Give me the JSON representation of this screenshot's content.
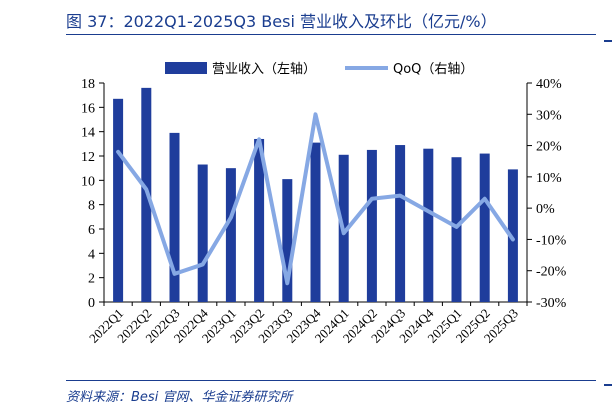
{
  "figure": {
    "title": "图 37：2022Q1-2025Q3 Besi 营业收入及环比（亿元/%）",
    "source": "资料来源：Besi 官网、华金证券研究所"
  },
  "colors": {
    "bar": "#1f3d9c",
    "line": "#86a8e4",
    "text": "#1a3d8f"
  },
  "chart_data": {
    "type": "bar",
    "categories": [
      "2022Q1",
      "2022Q2",
      "2022Q3",
      "2022Q4",
      "2023Q1",
      "2023Q2",
      "2023Q3",
      "2023Q4",
      "2024Q1",
      "2024Q2",
      "2024Q3",
      "2024Q4",
      "2025Q1",
      "2025Q2",
      "2025Q3"
    ],
    "series": [
      {
        "name": "营业收入（左轴）",
        "axis": "left",
        "type": "bar",
        "values": [
          16.7,
          17.6,
          13.9,
          11.3,
          11.0,
          13.4,
          10.1,
          13.1,
          12.1,
          12.5,
          12.9,
          12.6,
          11.9,
          12.2,
          10.9
        ]
      },
      {
        "name": "QoQ（右轴）",
        "axis": "right",
        "type": "line",
        "values": [
          18,
          6,
          -21,
          -18,
          -3,
          22,
          -24,
          30,
          -8,
          3,
          4,
          -1,
          -6,
          3,
          -10
        ]
      }
    ],
    "y_left": {
      "min": 0,
      "max": 18,
      "step": 2,
      "ticks": [
        "0",
        "2",
        "4",
        "6",
        "8",
        "10",
        "12",
        "14",
        "16",
        "18"
      ]
    },
    "y_right": {
      "min": -30,
      "max": 40,
      "step": 10,
      "ticks": [
        "-30%",
        "-20%",
        "-10%",
        "0%",
        "10%",
        "20%",
        "30%",
        "40%"
      ]
    },
    "grid": false,
    "legend_position": "top"
  }
}
